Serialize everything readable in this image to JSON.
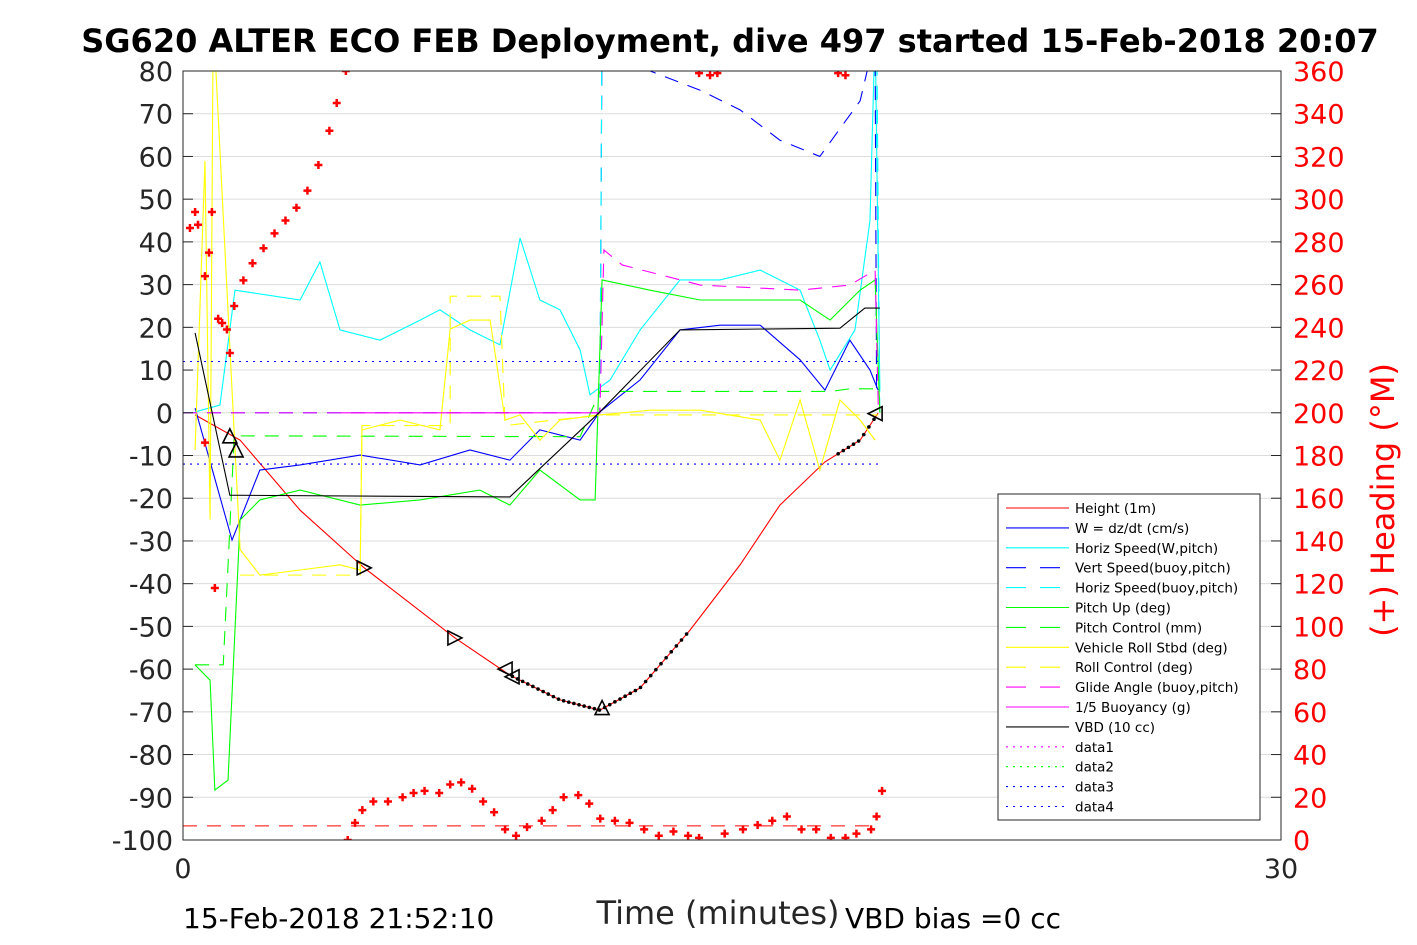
{
  "chart_data": {
    "type": "line",
    "title": "SG620 ALTER ECO FEB Deployment, dive 497 started 15-Feb-2018 20:07",
    "xlabel": "Time (minutes)",
    "ylabel_right": "(+) Heading (°M)",
    "footer_left": "15-Feb-2018 21:52:10",
    "footer_right": "VBD bias =0 cc",
    "xlim": [
      0,
      30
    ],
    "ylim": [
      -100,
      80
    ],
    "ylim_right": [
      0,
      360
    ],
    "xticks": [
      "0",
      "30"
    ],
    "yticks": [
      "80",
      "70",
      "60",
      "50",
      "40",
      "30",
      "20",
      "10",
      "0",
      "-10",
      "-20",
      "-30",
      "-40",
      "-50",
      "-60",
      "-70",
      "-80",
      "-90",
      "-100"
    ],
    "yticks_right": [
      "360",
      "340",
      "320",
      "300",
      "280",
      "260",
      "240",
      "220",
      "200",
      "180",
      "160",
      "140",
      "120",
      "100",
      "80",
      "60",
      "40",
      "20",
      "0"
    ],
    "grid": true,
    "legend_position": "bottom-right",
    "series": [
      {
        "name": "Height (1m)",
        "color": "#ff0000",
        "style": "solid",
        "points": [
          [
            0.33,
            -0.5
          ],
          [
            1.56,
            -6.4
          ],
          [
            3.2,
            -22.8
          ],
          [
            4.95,
            -36.3
          ],
          [
            7.43,
            -52.7
          ],
          [
            8.93,
            -61.4
          ],
          [
            10.3,
            -67.2
          ],
          [
            11.39,
            -69.6
          ],
          [
            12.49,
            -64.4
          ],
          [
            13.85,
            -50.9
          ],
          [
            15.22,
            -35.6
          ],
          [
            16.31,
            -21.6
          ],
          [
            17.54,
            -11.5
          ],
          [
            18.5,
            -6.4
          ],
          [
            18.99,
            -0.1
          ]
        ]
      },
      {
        "name": "W = dz/dt (cm/s)",
        "color": "#0000ff",
        "style": "solid",
        "points": [
          [
            0.33,
            1.1
          ],
          [
            1.34,
            -29.8
          ],
          [
            2.1,
            -13.4
          ],
          [
            3.2,
            -12.2
          ],
          [
            4.84,
            -9.9
          ],
          [
            6.48,
            -12.2
          ],
          [
            7.84,
            -8.7
          ],
          [
            8.93,
            -11.1
          ],
          [
            9.75,
            -4
          ],
          [
            10.85,
            -6.4
          ],
          [
            11.39,
            0.2
          ],
          [
            12.49,
            7.7
          ],
          [
            13.58,
            19.4
          ],
          [
            14.67,
            20.5
          ],
          [
            15.77,
            20.5
          ],
          [
            16.86,
            12.4
          ],
          [
            17.54,
            5.3
          ],
          [
            18.22,
            17
          ],
          [
            18.77,
            10
          ],
          [
            18.99,
            5.3
          ]
        ]
      },
      {
        "name": "Horiz Speed(W,pitch)",
        "color": "#00ffff",
        "style": "solid",
        "points": [
          [
            0.33,
            0.2
          ],
          [
            1.01,
            1.8
          ],
          [
            1.42,
            28.7
          ],
          [
            3.2,
            26.4
          ],
          [
            3.74,
            35.3
          ],
          [
            4.29,
            19.4
          ],
          [
            5.38,
            17
          ],
          [
            6.48,
            21.7
          ],
          [
            7.02,
            24.1
          ],
          [
            7.84,
            19.4
          ],
          [
            8.66,
            15.9
          ],
          [
            9.21,
            40.9
          ],
          [
            9.75,
            26.4
          ],
          [
            10.3,
            24.1
          ],
          [
            10.85,
            14.7
          ],
          [
            11.12,
            4.2
          ],
          [
            11.67,
            7.7
          ],
          [
            12.49,
            19.4
          ],
          [
            13.58,
            31.1
          ],
          [
            14.67,
            31.1
          ],
          [
            15.77,
            33.4
          ],
          [
            16.86,
            28.7
          ],
          [
            17.4,
            17
          ],
          [
            17.68,
            10
          ],
          [
            18.36,
            19.4
          ],
          [
            18.77,
            45
          ],
          [
            18.91,
            90
          ],
          [
            19.04,
            5
          ]
        ]
      },
      {
        "name": "Vert Speed(buoy,pitch)",
        "color": "#0000ff",
        "style": "dashed",
        "points": [
          [
            0,
            0
          ],
          [
            11.39,
            0
          ],
          [
            11.45,
            90
          ],
          [
            11.9,
            82
          ],
          [
            12.76,
            80
          ],
          [
            14.13,
            75.5
          ],
          [
            15.22,
            70.9
          ],
          [
            16.31,
            63.8
          ],
          [
            17.4,
            60
          ],
          [
            18.5,
            73
          ],
          [
            18.83,
            85
          ],
          [
            18.91,
            85
          ],
          [
            18.95,
            5
          ]
        ]
      },
      {
        "name": "Horiz Speed(buoy,pitch)",
        "color": "#00ffff",
        "style": "dashed",
        "points": [
          [
            0,
            0
          ],
          [
            11.39,
            0
          ],
          [
            11.45,
            95
          ],
          [
            18.95,
            95
          ],
          [
            19.04,
            -2
          ]
        ]
      },
      {
        "name": "Pitch Up (deg)",
        "color": "#00ff00",
        "style": "solid",
        "points": [
          [
            0.33,
            -59
          ],
          [
            0.74,
            -62.6
          ],
          [
            0.87,
            -88.3
          ],
          [
            1.23,
            -86
          ],
          [
            1.56,
            -25.1
          ],
          [
            2.1,
            -20.4
          ],
          [
            3.2,
            -18.1
          ],
          [
            4.84,
            -21.6
          ],
          [
            6.48,
            -20.4
          ],
          [
            8.11,
            -18.1
          ],
          [
            8.93,
            -21.6
          ],
          [
            9.75,
            -13.4
          ],
          [
            10.85,
            -20.4
          ],
          [
            11.26,
            -20.4
          ],
          [
            11.45,
            31.1
          ],
          [
            12.76,
            28.7
          ],
          [
            14.13,
            26.4
          ],
          [
            15.77,
            26.4
          ],
          [
            16.86,
            26.4
          ],
          [
            17.68,
            21.7
          ],
          [
            18.5,
            28.7
          ],
          [
            18.91,
            31.1
          ],
          [
            19.04,
            0
          ]
        ]
      },
      {
        "name": "Pitch Control (mm)",
        "color": "#00ff00",
        "style": "dashed",
        "points": [
          [
            0.33,
            -59
          ],
          [
            1.1,
            -59
          ],
          [
            1.4,
            -5.4
          ],
          [
            10.85,
            -5.6
          ],
          [
            11.39,
            5
          ],
          [
            17.7,
            5
          ],
          [
            18.2,
            5.6
          ],
          [
            19.0,
            5.6
          ]
        ]
      },
      {
        "name": "Vehicle Roll Stbd (deg)",
        "color": "#ffff00",
        "style": "solid",
        "points": [
          [
            0.33,
            -8.7
          ],
          [
            0.6,
            59
          ],
          [
            0.74,
            -25
          ],
          [
            0.82,
            85
          ],
          [
            0.87,
            85
          ],
          [
            1.56,
            -32
          ],
          [
            2.1,
            -38
          ],
          [
            3.2,
            -36.8
          ],
          [
            4.29,
            -35.6
          ],
          [
            4.84,
            -36.8
          ],
          [
            4.89,
            -4
          ],
          [
            5.93,
            -1.7
          ],
          [
            7.02,
            -4
          ],
          [
            7.3,
            19.6
          ],
          [
            7.84,
            21.7
          ],
          [
            8.39,
            21.7
          ],
          [
            8.8,
            -1.7
          ],
          [
            9.21,
            -0.5
          ],
          [
            9.75,
            -6.4
          ],
          [
            10.3,
            -1.7
          ],
          [
            11.39,
            -0.5
          ],
          [
            12.76,
            0.6
          ],
          [
            14.13,
            0.6
          ],
          [
            15.77,
            -1.7
          ],
          [
            16.31,
            -11.1
          ],
          [
            16.86,
            3
          ],
          [
            17.4,
            -13.4
          ],
          [
            17.95,
            3
          ],
          [
            18.5,
            -1.7
          ],
          [
            18.91,
            -6.4
          ]
        ]
      },
      {
        "name": "Roll Control (deg)",
        "color": "#ffff00",
        "style": "dashed",
        "points": [
          [
            1.56,
            -38
          ],
          [
            4.84,
            -38
          ],
          [
            4.89,
            -3
          ],
          [
            7.3,
            -3
          ],
          [
            7.3,
            27.3
          ],
          [
            8.66,
            27.3
          ],
          [
            8.8,
            -3
          ],
          [
            11.39,
            -0.5
          ],
          [
            19,
            -0.5
          ]
        ]
      },
      {
        "name": "Glide Angle (buoy,pitch)",
        "color": "#ff00ff",
        "style": "dashed",
        "points": [
          [
            0,
            0
          ],
          [
            11.39,
            0
          ],
          [
            11.5,
            38.1
          ],
          [
            12.0,
            34.6
          ],
          [
            14.13,
            29.9
          ],
          [
            16.86,
            28.7
          ],
          [
            18.22,
            29.9
          ],
          [
            18.91,
            33.4
          ],
          [
            19.0,
            0
          ]
        ]
      },
      {
        "name": "1/5 Buoyancy (g)",
        "color": "#ff00ff",
        "style": "solid",
        "points": [
          [
            4.3,
            0
          ],
          [
            11.4,
            0
          ]
        ]
      },
      {
        "name": "VBD (10 cc)",
        "color": "#000000",
        "style": "solid",
        "points": [
          [
            0.33,
            18.7
          ],
          [
            1.28,
            -19.3
          ],
          [
            8.93,
            -19.7
          ],
          [
            11.39,
            0.2
          ],
          [
            13.58,
            19.4
          ],
          [
            17.95,
            19.8
          ],
          [
            18.63,
            24.5
          ],
          [
            19.04,
            24.5
          ]
        ]
      },
      {
        "name": "data1",
        "color": "#ff00ff",
        "style": "dotted",
        "points": []
      },
      {
        "name": "data2",
        "color": "#00ff00",
        "style": "dotted",
        "points": []
      },
      {
        "name": "data3",
        "color": "#0000ff",
        "style": "dotted",
        "points": [
          [
            0,
            12
          ],
          [
            19,
            12
          ]
        ]
      },
      {
        "name": "data4",
        "color": "#0000ff",
        "style": "dotted",
        "points": [
          [
            0,
            -12
          ],
          [
            19,
            -12
          ]
        ]
      }
    ],
    "reference_line": {
      "color": "#ff0000",
      "style": "dashed",
      "value": -96.7,
      "range": [
        0,
        19
      ]
    },
    "heading": {
      "color": "#ff0000",
      "marker": "+",
      "points": [
        [
          0.19,
          286.5
        ],
        [
          0.33,
          294
        ],
        [
          0.41,
          288
        ],
        [
          0.79,
          294
        ],
        [
          0.6,
          264
        ],
        [
          0.71,
          275
        ],
        [
          0.96,
          244
        ],
        [
          1.07,
          242
        ],
        [
          1.2,
          239
        ],
        [
          1.28,
          228
        ],
        [
          0.87,
          118
        ],
        [
          0.6,
          186
        ],
        [
          1.4,
          250
        ],
        [
          1.65,
          262
        ],
        [
          1.9,
          270
        ],
        [
          2.2,
          277
        ],
        [
          2.5,
          284
        ],
        [
          2.8,
          290
        ],
        [
          3.1,
          296
        ],
        [
          3.4,
          304
        ],
        [
          3.7,
          316
        ],
        [
          4.0,
          332
        ],
        [
          4.2,
          345
        ],
        [
          4.45,
          360
        ],
        [
          4.5,
          0
        ],
        [
          4.7,
          8
        ],
        [
          4.9,
          14
        ],
        [
          5.2,
          18
        ],
        [
          5.6,
          18
        ],
        [
          6,
          20
        ],
        [
          6.3,
          22
        ],
        [
          6.6,
          23
        ],
        [
          7,
          22
        ],
        [
          7.3,
          26
        ],
        [
          7.6,
          27
        ],
        [
          7.9,
          24
        ],
        [
          8.2,
          18
        ],
        [
          8.5,
          13
        ],
        [
          8.8,
          5
        ],
        [
          9.1,
          2
        ],
        [
          9.4,
          6
        ],
        [
          9.8,
          9
        ],
        [
          10.1,
          14
        ],
        [
          10.4,
          20
        ],
        [
          10.8,
          21
        ],
        [
          11.1,
          17
        ],
        [
          11.4,
          10
        ],
        [
          11.8,
          9
        ],
        [
          12.2,
          8
        ],
        [
          12.6,
          5
        ],
        [
          13.0,
          2
        ],
        [
          13.4,
          4
        ],
        [
          13.8,
          2
        ],
        [
          14.1,
          1
        ],
        [
          14.8,
          3
        ],
        [
          15.3,
          5
        ],
        [
          15.7,
          7
        ],
        [
          16.1,
          9
        ],
        [
          16.5,
          11
        ],
        [
          16.9,
          5
        ],
        [
          17.3,
          5
        ],
        [
          17.7,
          1
        ],
        [
          18.1,
          1
        ],
        [
          18.4,
          3
        ],
        [
          18.8,
          5
        ],
        [
          18.95,
          11
        ],
        [
          19.1,
          23
        ],
        [
          14.1,
          359
        ],
        [
          14.4,
          358
        ],
        [
          14.6,
          359
        ],
        [
          17.9,
          359
        ],
        [
          18.1,
          358
        ]
      ]
    },
    "triangle_markers": [
      [
        1.28,
        -5.4,
        "up"
      ],
      [
        1.45,
        -8.7,
        "up"
      ],
      [
        4.95,
        -36.3,
        "right"
      ],
      [
        7.43,
        -52.7,
        "right"
      ],
      [
        8.8,
        -60,
        "left"
      ],
      [
        8.99,
        -61.8,
        "left"
      ],
      [
        11.45,
        -69,
        "up"
      ],
      [
        18.91,
        -0.2,
        "left"
      ]
    ],
    "dot_ranges": [
      [
        9.0,
        13.85
      ],
      [
        17.9,
        18.9
      ]
    ]
  }
}
